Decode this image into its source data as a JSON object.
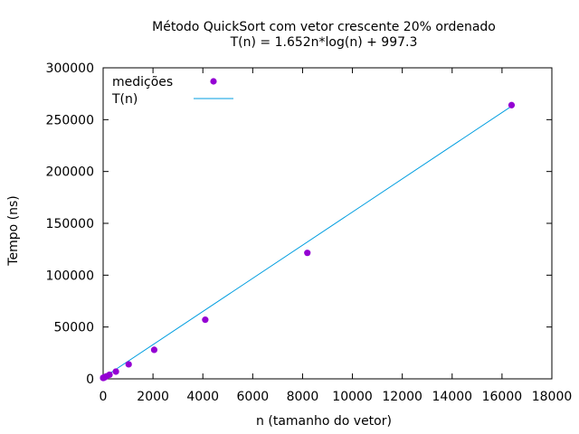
{
  "chart_data": {
    "type": "scatter",
    "title": "Método QuickSort com vetor crescente 20% ordenado",
    "subtitle": "T(n) = 1.652n*log(n) + 997.3",
    "xlabel": "n (tamanho do vetor)",
    "ylabel": "Tempo (ns)",
    "xlim": [
      0,
      18000
    ],
    "ylim": [
      0,
      300000
    ],
    "xticks": [
      "0",
      "2000",
      "4000",
      "6000",
      "8000",
      "10000",
      "12000",
      "14000",
      "16000",
      "18000"
    ],
    "yticks": [
      "0",
      "50000",
      "100000",
      "150000",
      "200000",
      "250000",
      "300000"
    ],
    "grid": false,
    "legend_position": "top-left",
    "series": [
      {
        "name": "medições",
        "kind": "points",
        "color": "#9400d3",
        "x": [
          2,
          4,
          8,
          16,
          32,
          64,
          128,
          256,
          512,
          1024,
          2048,
          4096,
          8192,
          16384
        ],
        "y": [
          900,
          950,
          1000,
          1100,
          1200,
          1500,
          2400,
          4000,
          7000,
          14000,
          28000,
          57000,
          121500,
          264000
        ]
      },
      {
        "name": "T(n)",
        "kind": "line",
        "color": "#009ee0",
        "x": [
          0,
          16384
        ],
        "y": [
          997.3,
          263000
        ]
      }
    ]
  }
}
